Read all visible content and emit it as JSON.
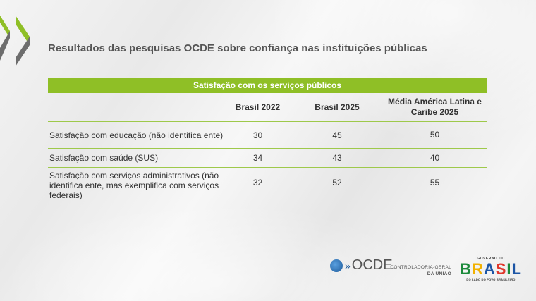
{
  "title": "Resultados das pesquisas OCDE sobre confiança nas instituições públicas",
  "table": {
    "caption": "Satisfação com os serviços públicos",
    "headers": [
      "",
      "Brasil 2022",
      "Brasil 2025",
      "Média América Latina e Caribe 2025"
    ],
    "rows": [
      [
        "Satisfação com educação (não identifica ente)",
        "30",
        "45",
        "50"
      ],
      [
        "Satisfação com saúde (SUS)",
        "34",
        "43",
        "40"
      ],
      [
        "Satisfação com serviços administrativos (não identifica ente, mas exemplifica com serviços federais)",
        "32",
        "52",
        "55"
      ]
    ]
  },
  "footer": {
    "ocde": "OCDE",
    "cgu_line1": "CONTROLADORIA-GERAL",
    "cgu_line2": "DA UNIÃO",
    "gov_top": "GOVERNO DO",
    "gov_brasil": "BRASIL",
    "gov_bottom": "DO LADO DO POVO BRASILEIRO"
  },
  "colors": {
    "accent": "#8fbf26",
    "gray": "#6d6d6d"
  }
}
